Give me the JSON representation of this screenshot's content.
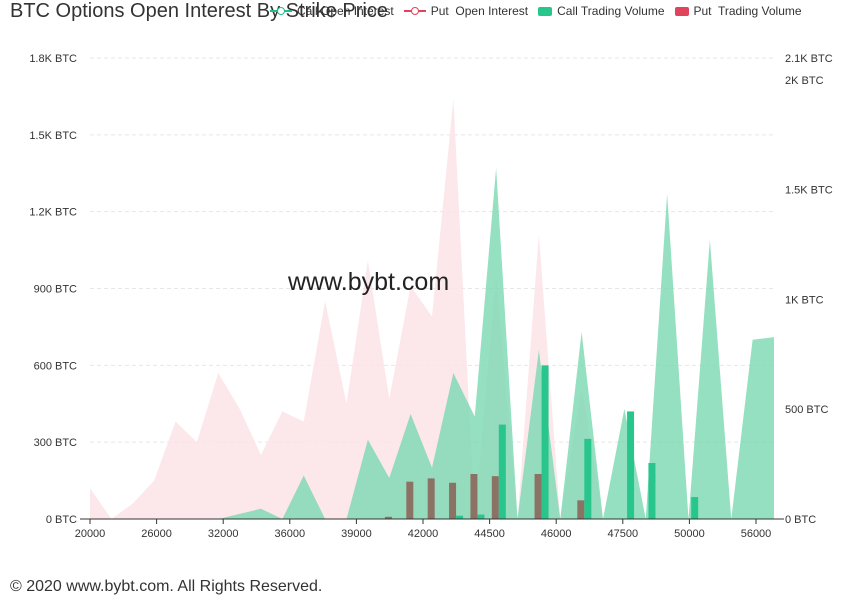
{
  "title": "BTC Options Open Interest By Strike Price",
  "watermark": "www.bybt.com",
  "footer": "© 2020 www.bybt.com. All Rights Reserved.",
  "legend": [
    {
      "name": "Call Open Interest",
      "kind": "line",
      "color": "#1fbd86"
    },
    {
      "name": "Put  Open Interest",
      "kind": "line",
      "color": "#e0445c"
    },
    {
      "name": "Call Trading Volume",
      "kind": "bar",
      "color": "#28c58d"
    },
    {
      "name": "Put  Trading Volume",
      "kind": "bar",
      "color": "#e0445c"
    }
  ],
  "chart_data": {
    "type": "area",
    "strikes": [
      20000,
      22000,
      24000,
      26000,
      27000,
      28000,
      30000,
      32000,
      33000,
      34000,
      35000,
      36000,
      37000,
      38000,
      39000,
      40000,
      41000,
      42000,
      43000,
      44000,
      44500,
      45000,
      45500,
      46000,
      47000,
      47500,
      48000,
      49000,
      50000,
      52000,
      55000,
      56000,
      60000
    ],
    "tick_labels": [
      "20000",
      "26000",
      "32000",
      "36000",
      "39000",
      "42000",
      "44500",
      "46000",
      "47500",
      "50000",
      "56000"
    ],
    "y_left": {
      "ticks": [
        "0 BTC",
        "300 BTC",
        "600 BTC",
        "900 BTC",
        "1.2K BTC",
        "1.5K BTC",
        "1.8K BTC"
      ],
      "max": 1800
    },
    "y_right": {
      "ticks": [
        "0 BTC",
        "500 BTC",
        "1K BTC",
        "1.5K BTC",
        "2K BTC",
        "2.1K BTC"
      ],
      "values": [
        0,
        500,
        1000,
        1500,
        2000,
        2100
      ],
      "max": 2100
    },
    "series": [
      {
        "name": "Call Open Interest",
        "type": "area",
        "axis": "left",
        "color": "#1fbd86",
        "values": [
          0,
          0,
          0,
          0,
          0,
          0,
          0,
          20,
          40,
          0,
          170,
          0,
          0,
          310,
          160,
          410,
          200,
          570,
          400,
          1370,
          0,
          660,
          0,
          730,
          0,
          430,
          0,
          1270,
          0,
          1090,
          0,
          700,
          710
        ]
      },
      {
        "name": "Put  Open Interest",
        "type": "area",
        "axis": "left",
        "color": "#e0445c",
        "values": [
          120,
          0,
          60,
          150,
          380,
          300,
          570,
          430,
          250,
          420,
          380,
          850,
          450,
          1010,
          470,
          910,
          790,
          1640,
          0,
          950,
          0,
          1110,
          0,
          510,
          0,
          0,
          0,
          0,
          0,
          0,
          0,
          0,
          0
        ]
      },
      {
        "name": "Call Trading Volume",
        "type": "bar",
        "axis": "right",
        "color": "#28c58d",
        "values": [
          0,
          0,
          0,
          0,
          0,
          0,
          0,
          0,
          0,
          0,
          0,
          0,
          0,
          0,
          0,
          0,
          0,
          15,
          20,
          430,
          0,
          700,
          0,
          365,
          0,
          490,
          255,
          0,
          100,
          0,
          0,
          0,
          0
        ]
      },
      {
        "name": "Put  Trading Volume",
        "type": "bar",
        "axis": "right",
        "color": "#e0445c",
        "values": [
          0,
          0,
          0,
          0,
          0,
          0,
          0,
          0,
          0,
          0,
          0,
          0,
          0,
          0,
          10,
          170,
          185,
          165,
          205,
          195,
          0,
          205,
          0,
          85,
          0,
          0,
          0,
          0,
          0,
          0,
          0,
          0,
          0
        ]
      }
    ]
  }
}
